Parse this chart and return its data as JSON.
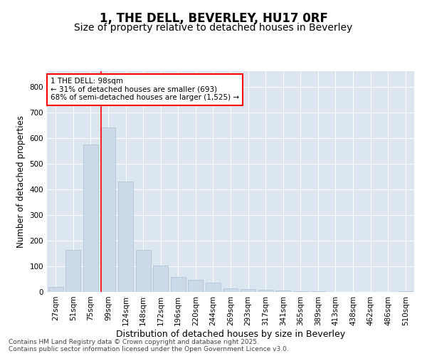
{
  "title1": "1, THE DELL, BEVERLEY, HU17 0RF",
  "title2": "Size of property relative to detached houses in Beverley",
  "xlabel": "Distribution of detached houses by size in Beverley",
  "ylabel": "Number of detached properties",
  "categories": [
    "27sqm",
    "51sqm",
    "75sqm",
    "99sqm",
    "124sqm",
    "148sqm",
    "172sqm",
    "196sqm",
    "220sqm",
    "244sqm",
    "269sqm",
    "293sqm",
    "317sqm",
    "341sqm",
    "365sqm",
    "389sqm",
    "413sqm",
    "438sqm",
    "462sqm",
    "486sqm",
    "510sqm"
  ],
  "values": [
    20,
    165,
    575,
    640,
    430,
    165,
    103,
    57,
    46,
    35,
    15,
    12,
    8,
    6,
    4,
    3,
    1,
    1,
    0,
    0,
    2
  ],
  "bar_color": "#ccd9e8",
  "bar_edge_color": "#aabfcf",
  "vline_color": "red",
  "vline_index": 2.575,
  "annotation_text": "1 THE DELL: 98sqm\n← 31% of detached houses are smaller (693)\n68% of semi-detached houses are larger (1,525) →",
  "annotation_box_color": "white",
  "annotation_box_edge_color": "red",
  "ylim": [
    0,
    860
  ],
  "yticks": [
    0,
    100,
    200,
    300,
    400,
    500,
    600,
    700,
    800
  ],
  "background_color": "#dce6f0",
  "footer_text": "Contains HM Land Registry data © Crown copyright and database right 2025.\nContains public sector information licensed under the Open Government Licence v3.0.",
  "title1_fontsize": 12,
  "title2_fontsize": 10,
  "xlabel_fontsize": 9,
  "ylabel_fontsize": 8.5,
  "tick_fontsize": 7.5,
  "annot_fontsize": 7.5,
  "footer_fontsize": 6.5
}
